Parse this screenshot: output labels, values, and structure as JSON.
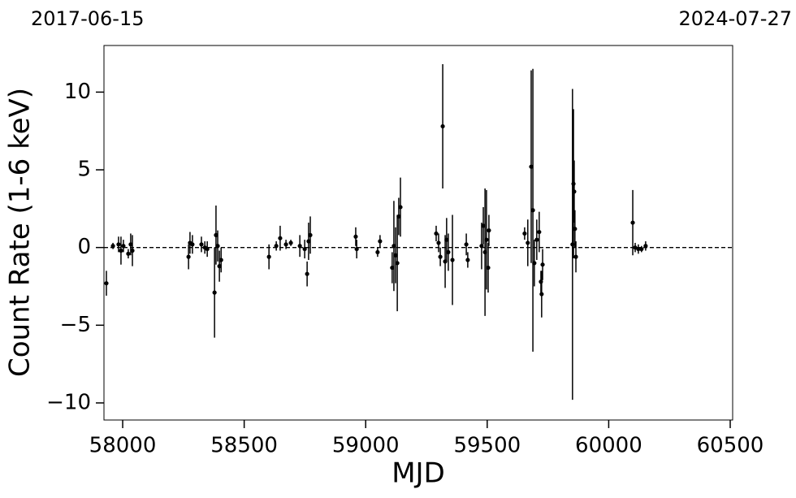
{
  "chart_data": {
    "type": "errorbar",
    "date_start": "2017-06-15",
    "date_end": "2024-07-27",
    "xlabel": "MJD",
    "ylabel": "Count Rate (1-6 keV)",
    "xlim": [
      57923,
      60510
    ],
    "ylim": [
      -11.1,
      13
    ],
    "xticks": [
      58000,
      58500,
      59000,
      59500,
      60000,
      60500
    ],
    "yticks": [
      {
        "value": -10,
        "label": "−10"
      },
      {
        "value": -5,
        "label": "−5"
      },
      0,
      5,
      10
    ],
    "hline": 0,
    "color": "#000000",
    "x": [
      57933,
      57960,
      57983,
      57993,
      58003,
      58023,
      58033,
      58040,
      58271,
      58277,
      58287,
      58324,
      58338,
      58348,
      58378,
      58384,
      58391,
      58398,
      58405,
      58602,
      58632,
      58648,
      58672,
      58692,
      58729,
      58749,
      58759,
      58765,
      58772,
      58959,
      58963,
      59049,
      59059,
      59109,
      59116,
      59123,
      59130,
      59136,
      59143,
      59290,
      59300,
      59307,
      59317,
      59327,
      59333,
      59340,
      59357,
      59414,
      59420,
      59477,
      59484,
      59491,
      59497,
      59504,
      59507,
      59654,
      59667,
      59681,
      59688,
      59694,
      59704,
      59714,
      59721,
      59724,
      59728,
      59851,
      59855,
      59858,
      59861,
      59865,
      60099,
      60109,
      60122,
      60135,
      60152
    ],
    "values": [
      -2.3,
      0.1,
      0.2,
      -0.2,
      0.1,
      -0.4,
      0.2,
      -0.2,
      -0.6,
      0.3,
      0.2,
      0.2,
      0,
      -0.1,
      -2.9,
      0.8,
      0.1,
      -1.2,
      -0.8,
      -0.6,
      0.1,
      0.6,
      0.2,
      0.3,
      0.1,
      -0.1,
      -1.7,
      0.4,
      0.8,
      0.7,
      -0.1,
      -0.3,
      0.4,
      -1.3,
      0.1,
      -0.5,
      -1.0,
      2.0,
      2.6,
      0.9,
      0.3,
      -0.6,
      7.8,
      -0.9,
      0.5,
      -0.3,
      -0.8,
      0.2,
      -0.8,
      0.1,
      1.4,
      -0.3,
      0.5,
      -1.3,
      1.1,
      0.9,
      0.3,
      5.2,
      2.4,
      -1.0,
      0.5,
      1.0,
      -2.2,
      -3.0,
      -1.1,
      0.2,
      4.1,
      3.6,
      1.2,
      -0.6,
      1.6,
      0.0,
      -0.1,
      -0.1,
      0.1
    ],
    "errors": [
      0.8,
      0.2,
      0.5,
      0.9,
      0.4,
      0.3,
      0.7,
      1.0,
      0.8,
      0.7,
      0.6,
      0.5,
      0.4,
      0.5,
      2.9,
      1.9,
      1.0,
      1.0,
      0.8,
      0.8,
      0.3,
      0.8,
      0.3,
      0.2,
      0.7,
      0.6,
      0.8,
      1.2,
      1.2,
      0.6,
      0.6,
      0.3,
      0.4,
      1.0,
      2.9,
      1.8,
      3.1,
      1.2,
      1.9,
      0.5,
      0.6,
      0.6,
      4.0,
      1.7,
      1.4,
      1.2,
      2.9,
      0.7,
      0.5,
      1.5,
      1.2,
      4.1,
      3.2,
      1.6,
      1.0,
      0.4,
      1.5,
      6.2,
      9.1,
      1.5,
      1.3,
      1.3,
      0.7,
      1.5,
      1.0,
      10.0,
      4.8,
      2.0,
      1.2,
      1.0,
      2.1,
      0.3,
      0.3,
      0.2,
      0.3
    ]
  }
}
